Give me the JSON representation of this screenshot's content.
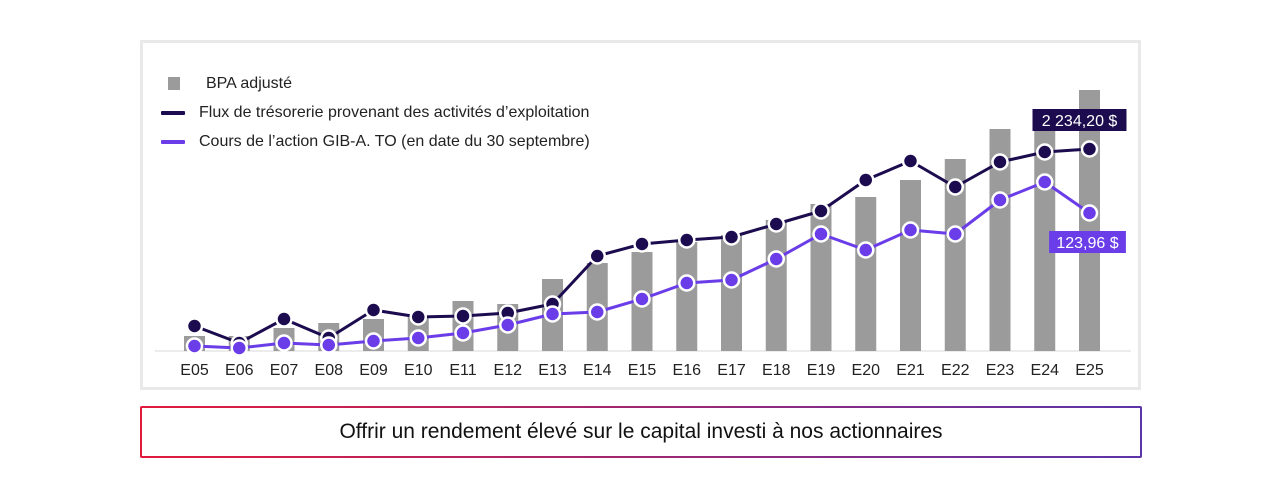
{
  "chart_data": {
    "type": "bar+line",
    "categories": [
      "E05",
      "E06",
      "E07",
      "E08",
      "E09",
      "E10",
      "E11",
      "E12",
      "E13",
      "E14",
      "E15",
      "E16",
      "E17",
      "E18",
      "E19",
      "E20",
      "E21",
      "E22",
      "E23",
      "E24",
      "E25"
    ],
    "series": [
      {
        "name": "BPA adjusté",
        "type": "bar",
        "color": "#9b9b9b",
        "values": [
          15,
          15,
          23,
          28,
          32,
          35,
          50,
          47,
          72,
          88,
          99,
          109,
          116,
          131,
          147,
          154,
          171,
          192,
          222,
          239,
          261
        ]
      },
      {
        "name": "Flux de trésorerie provenant des activités d’exploitation",
        "type": "line",
        "color": "#1c0c4f",
        "values": [
          25,
          8,
          32,
          13,
          41,
          34,
          35,
          38,
          47,
          95,
          107,
          111,
          114,
          127,
          140,
          171,
          190,
          164,
          189,
          199,
          202
        ]
      },
      {
        "name": "Cours de l’action GIB-A. TO (en date du 30 septembre)",
        "type": "line",
        "color": "#6a3de8",
        "values": [
          5,
          3,
          8,
          6,
          10,
          13,
          18,
          26,
          37,
          39,
          52,
          68,
          71,
          92,
          117,
          101,
          121,
          117,
          151,
          169,
          138
        ]
      }
    ],
    "annotations": {
      "cash_flow_last": "2 234,20 $",
      "share_price_last": "123,96 $"
    },
    "grid": false,
    "legend_position": "top-left"
  },
  "callout": {
    "text": "Offrir un rendement élevé sur le capital investi à nos actionnaires"
  }
}
